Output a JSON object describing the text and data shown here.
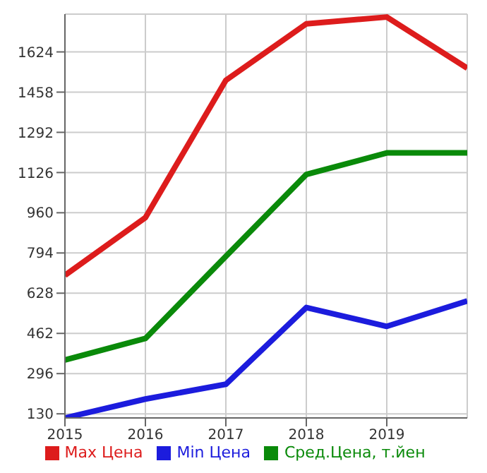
{
  "chart_data": {
    "type": "line",
    "x": [
      2015,
      2016,
      2017,
      2018,
      2019,
      2020
    ],
    "series": [
      {
        "name": "Max Цена",
        "color": "#dd1c1c",
        "values": [
          702,
          940,
          1507,
          1740,
          1768,
          1557
        ]
      },
      {
        "name": "Min Цена",
        "color": "#1c1cdd",
        "values": [
          113,
          191,
          252,
          569,
          491,
          596
        ]
      },
      {
        "name": "Сред.Цена, т.йен",
        "color": "#0a8a0a",
        "values": [
          352,
          441,
          780,
          1118,
          1207,
          1207
        ]
      }
    ],
    "xlim": [
      2015,
      2020
    ],
    "xticks": [
      2015,
      2016,
      2017,
      2018,
      2019
    ],
    "ylim": [
      113,
      1780
    ],
    "yticks": [
      130,
      296,
      462,
      628,
      794,
      960,
      1126,
      1292,
      1458,
      1624
    ],
    "grid": true,
    "legend": "bottom",
    "marker": "none",
    "line_style": "solid"
  }
}
